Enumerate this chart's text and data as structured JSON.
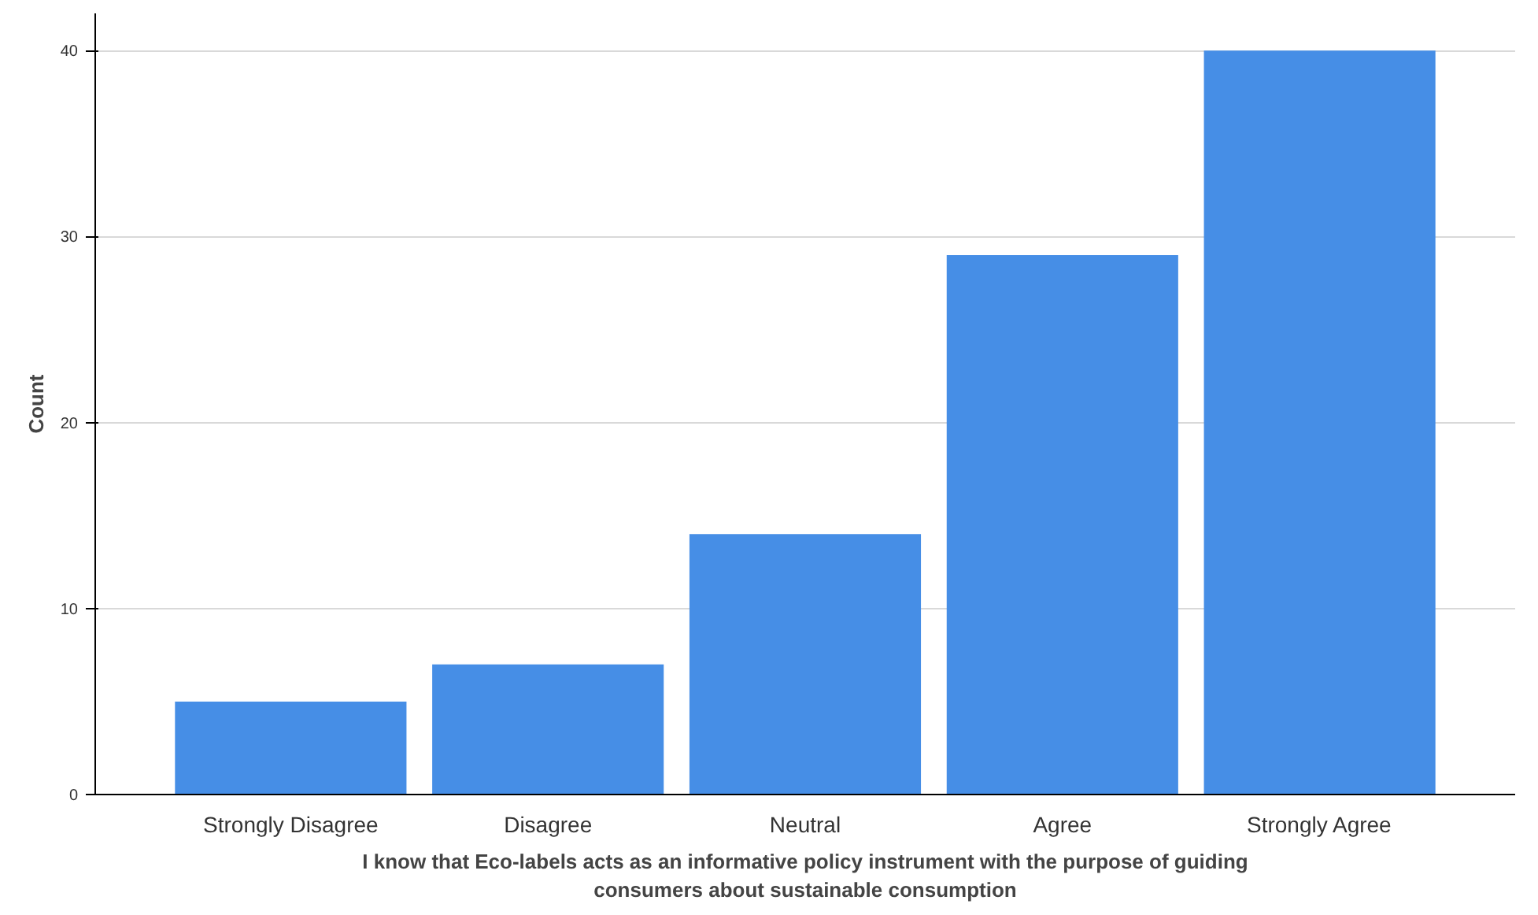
{
  "chart_data": {
    "type": "bar",
    "xlabel": "I know that Eco-labels acts as an informative policy instrument with the purpose of guiding\nconsumers about sustainable consumption",
    "ylabel": "Count",
    "categories": [
      "Strongly Disagree",
      "Disagree",
      "Neutral",
      "Agree",
      "Strongly Agree"
    ],
    "values": [
      5,
      7,
      14,
      29,
      40
    ],
    "color": "#468ee6",
    "ylim": [
      0,
      42
    ],
    "yticks": [
      0,
      10,
      20,
      30,
      40
    ],
    "grid": "y"
  }
}
